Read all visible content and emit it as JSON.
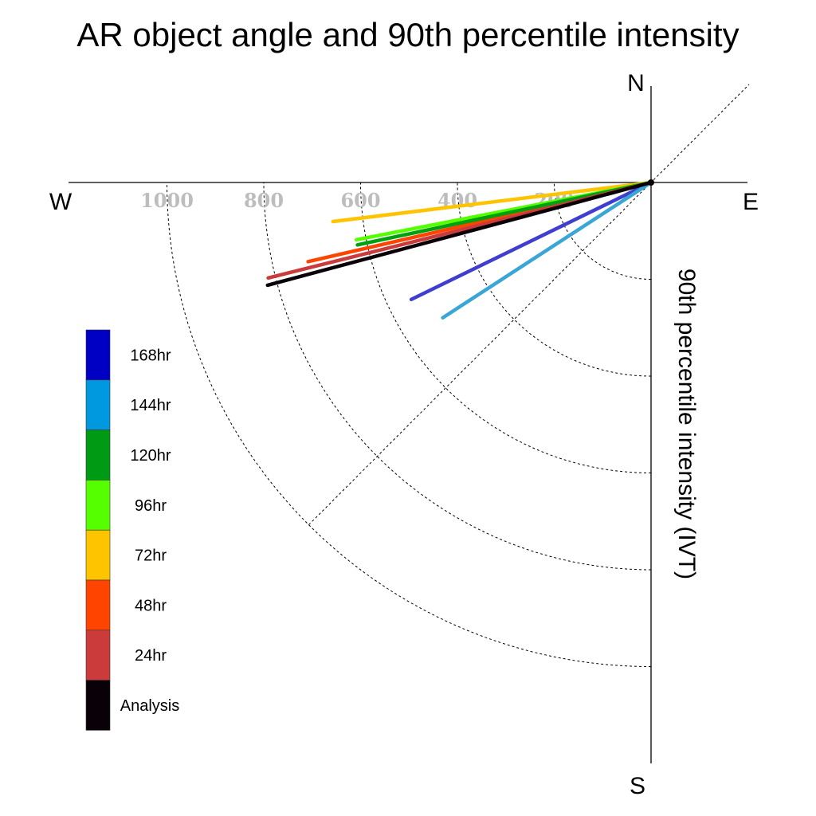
{
  "chart_data": {
    "type": "polar-line",
    "title": "AR object angle and 90th percentile intensity",
    "ylabel": "90th percentile intensity (IVT)",
    "compass": {
      "north": "N",
      "south": "S",
      "east": "E",
      "west": "W"
    },
    "radial_ticks": [
      200,
      400,
      600,
      800,
      1000
    ],
    "radial_tick_labels": [
      "200",
      "400",
      "600",
      "800",
      "1000"
    ],
    "rlim": [
      0,
      1000
    ],
    "angle_unit": "degrees clockwise from north",
    "grid": true,
    "legend_position": "left",
    "series": [
      {
        "name": "Analysis",
        "color": "#0a0008",
        "angle_deg": 255,
        "value": 820
      },
      {
        "name": "24hr",
        "color": "#cc3b3b",
        "angle_deg": 256,
        "value": 815
      },
      {
        "name": "48hr",
        "color": "#ff4400",
        "angle_deg": 257,
        "value": 727
      },
      {
        "name": "72hr",
        "color": "#ffc400",
        "angle_deg": 263,
        "value": 662
      },
      {
        "name": "96hr",
        "color": "#55ff00",
        "angle_deg": 259,
        "value": 620
      },
      {
        "name": "120hr",
        "color": "#00a010",
        "angle_deg": 258,
        "value": 620
      },
      {
        "name": "144hr",
        "color": "#3aa6d6",
        "angle_deg": 237,
        "value": 513
      },
      {
        "name": "168hr",
        "color": "#3f3ed0",
        "angle_deg": 244,
        "value": 551
      }
    ],
    "legend_order": [
      "168hr",
      "144hr",
      "120hr",
      "96hr",
      "72hr",
      "48hr",
      "24hr",
      "Analysis"
    ],
    "legend_colors": {
      "168hr": "#0000c4",
      "144hr": "#0099e0",
      "120hr": "#009a14",
      "96hr": "#55ff00",
      "72hr": "#ffc400",
      "48hr": "#ff4400",
      "24hr": "#cc3b3b",
      "Analysis": "#0a0008"
    }
  }
}
